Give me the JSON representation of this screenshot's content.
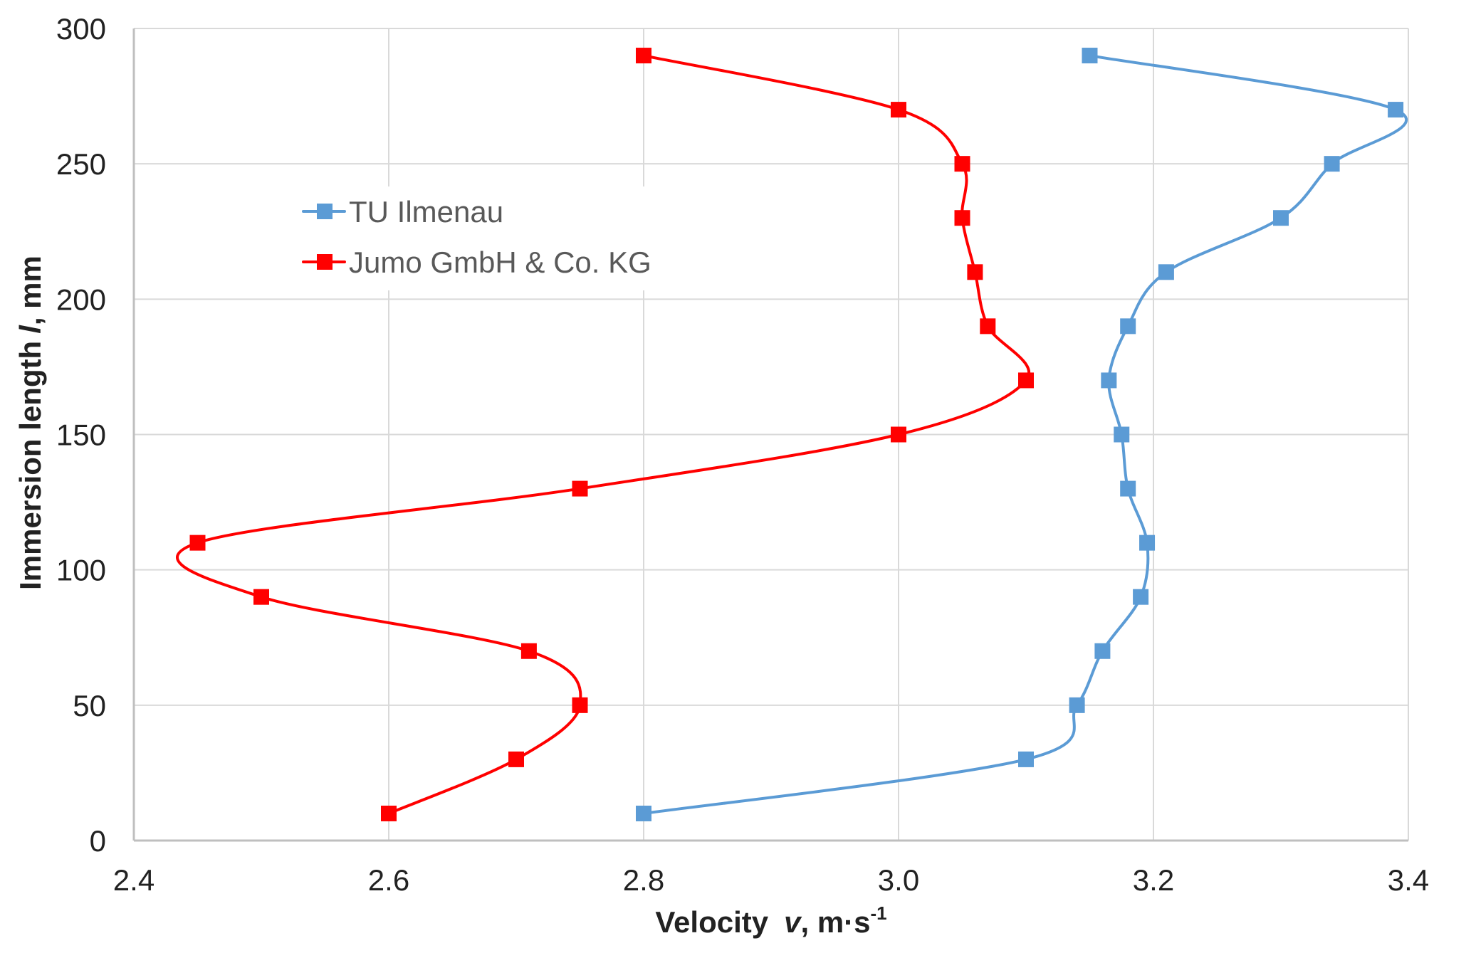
{
  "chart_data": {
    "type": "line",
    "title": "",
    "xlabel": "Velocity v, m·s-1",
    "xlabel_parts": {
      "text": "Velocity",
      "var": "v",
      "unit": ", m·s",
      "sup": "-1"
    },
    "ylabel": "Immersion length l, mm",
    "ylabel_parts": {
      "text": "Immersion length",
      "var": "l",
      "unit": ", mm"
    },
    "xlim": [
      2.4,
      3.4
    ],
    "ylim": [
      0,
      300
    ],
    "xticks": [
      "2.4",
      "2.6",
      "2.8",
      "3.0",
      "3.2",
      "3.4"
    ],
    "yticks": [
      "0",
      "50",
      "100",
      "150",
      "200",
      "250",
      "300"
    ],
    "grid": true,
    "smooth": true,
    "legend_position": "upper-left",
    "series": [
      {
        "name": "TU Ilmenau",
        "color": "#5b9bd5",
        "marker": "square",
        "points": [
          {
            "x": 2.8,
            "y": 10
          },
          {
            "x": 3.1,
            "y": 30
          },
          {
            "x": 3.14,
            "y": 50
          },
          {
            "x": 3.16,
            "y": 70
          },
          {
            "x": 3.19,
            "y": 90
          },
          {
            "x": 3.195,
            "y": 110
          },
          {
            "x": 3.18,
            "y": 130
          },
          {
            "x": 3.175,
            "y": 150
          },
          {
            "x": 3.165,
            "y": 170
          },
          {
            "x": 3.18,
            "y": 190
          },
          {
            "x": 3.21,
            "y": 210
          },
          {
            "x": 3.3,
            "y": 230
          },
          {
            "x": 3.34,
            "y": 250
          },
          {
            "x": 3.39,
            "y": 270
          },
          {
            "x": 3.15,
            "y": 290
          }
        ]
      },
      {
        "name": "Jumo GmbH & Co. KG",
        "color": "#ff0000",
        "marker": "square",
        "points": [
          {
            "x": 2.6,
            "y": 10
          },
          {
            "x": 2.7,
            "y": 30
          },
          {
            "x": 2.75,
            "y": 50
          },
          {
            "x": 2.71,
            "y": 70
          },
          {
            "x": 2.5,
            "y": 90
          },
          {
            "x": 2.45,
            "y": 110
          },
          {
            "x": 2.75,
            "y": 130
          },
          {
            "x": 3.0,
            "y": 150
          },
          {
            "x": 3.1,
            "y": 170
          },
          {
            "x": 3.07,
            "y": 190
          },
          {
            "x": 3.06,
            "y": 210
          },
          {
            "x": 3.05,
            "y": 230
          },
          {
            "x": 3.05,
            "y": 250
          },
          {
            "x": 3.0,
            "y": 270
          },
          {
            "x": 2.8,
            "y": 290
          }
        ]
      }
    ]
  }
}
